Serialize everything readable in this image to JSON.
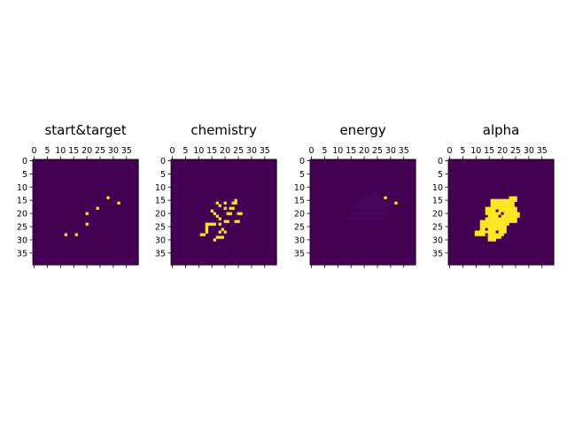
{
  "colors": {
    "background": "#440154",
    "foreground": "#fde725",
    "faint": "#46085c"
  },
  "chart_data": [
    {
      "type": "heatmap",
      "title": "start&target",
      "grid_size": 40,
      "xticks": [
        0,
        5,
        10,
        15,
        20,
        25,
        30,
        35
      ],
      "yticks": [
        0,
        5,
        10,
        15,
        20,
        25,
        30,
        35
      ],
      "xlim": [
        -0.5,
        39.5
      ],
      "ylim": [
        39.5,
        -0.5
      ],
      "colormap": "viridis",
      "value_range": [
        0,
        1
      ],
      "cells": [
        {
          "x": 28,
          "y": 14,
          "v": 1
        },
        {
          "x": 32,
          "y": 16,
          "v": 1
        },
        {
          "x": 24,
          "y": 18,
          "v": 1
        },
        {
          "x": 20,
          "y": 20,
          "v": 1
        },
        {
          "x": 20,
          "y": 24,
          "v": 1
        },
        {
          "x": 12,
          "y": 28,
          "v": 1
        },
        {
          "x": 16,
          "y": 28,
          "v": 1
        }
      ]
    },
    {
      "type": "heatmap",
      "title": "chemistry",
      "grid_size": 40,
      "xticks": [
        0,
        5,
        10,
        15,
        20,
        25,
        30,
        35
      ],
      "yticks": [
        0,
        5,
        10,
        15,
        20,
        25,
        30,
        35
      ],
      "xlim": [
        -0.5,
        39.5
      ],
      "ylim": [
        39.5,
        -0.5
      ],
      "colormap": "viridis",
      "value_range": [
        0,
        1
      ],
      "cells": [
        {
          "x": 24,
          "y": 15,
          "v": 1
        },
        {
          "x": 17,
          "y": 16,
          "v": 1
        },
        {
          "x": 20,
          "y": 16,
          "v": 1
        },
        {
          "x": 23,
          "y": 16,
          "v": 1
        },
        {
          "x": 24,
          "y": 16,
          "v": 1
        },
        {
          "x": 18,
          "y": 17,
          "v": 1
        },
        {
          "x": 20,
          "y": 18,
          "v": 1
        },
        {
          "x": 22,
          "y": 18,
          "v": 1
        },
        {
          "x": 23,
          "y": 18,
          "v": 1
        },
        {
          "x": 15,
          "y": 19,
          "v": 1
        },
        {
          "x": 16,
          "y": 20,
          "v": 1
        },
        {
          "x": 21,
          "y": 20,
          "v": 1
        },
        {
          "x": 22,
          "y": 20,
          "v": 1
        },
        {
          "x": 25,
          "y": 20,
          "v": 1
        },
        {
          "x": 26,
          "y": 20,
          "v": 1
        },
        {
          "x": 17,
          "y": 21,
          "v": 1
        },
        {
          "x": 18,
          "y": 22,
          "v": 1
        },
        {
          "x": 20,
          "y": 23,
          "v": 1
        },
        {
          "x": 21,
          "y": 23,
          "v": 1
        },
        {
          "x": 24,
          "y": 23,
          "v": 1
        },
        {
          "x": 25,
          "y": 23,
          "v": 1
        },
        {
          "x": 13,
          "y": 24,
          "v": 1
        },
        {
          "x": 14,
          "y": 24,
          "v": 1
        },
        {
          "x": 15,
          "y": 24,
          "v": 1
        },
        {
          "x": 16,
          "y": 24,
          "v": 1
        },
        {
          "x": 18,
          "y": 24,
          "v": 1
        },
        {
          "x": 13,
          "y": 25,
          "v": 1
        },
        {
          "x": 13,
          "y": 26,
          "v": 1
        },
        {
          "x": 19,
          "y": 26,
          "v": 1
        },
        {
          "x": 13,
          "y": 27,
          "v": 1
        },
        {
          "x": 18,
          "y": 27,
          "v": 1
        },
        {
          "x": 20,
          "y": 27,
          "v": 1
        },
        {
          "x": 11,
          "y": 28,
          "v": 1
        },
        {
          "x": 12,
          "y": 28,
          "v": 1
        },
        {
          "x": 17,
          "y": 29,
          "v": 1
        },
        {
          "x": 18,
          "y": 29,
          "v": 1
        },
        {
          "x": 19,
          "y": 29,
          "v": 1
        },
        {
          "x": 16,
          "y": 30,
          "v": 1
        }
      ]
    },
    {
      "type": "heatmap",
      "title": "energy",
      "grid_size": 40,
      "xticks": [
        0,
        5,
        10,
        15,
        20,
        25,
        30,
        35
      ],
      "yticks": [
        0,
        5,
        10,
        15,
        20,
        25,
        30,
        35
      ],
      "xlim": [
        -0.5,
        39.5
      ],
      "ylim": [
        39.5,
        -0.5
      ],
      "colormap": "viridis",
      "value_range": [
        0,
        1
      ],
      "faint_region_value": 0.03,
      "cells": [
        {
          "x": 28,
          "y": 14,
          "v": 1
        },
        {
          "x": 32,
          "y": 16,
          "v": 1
        }
      ]
    },
    {
      "type": "heatmap",
      "title": "alpha",
      "grid_size": 40,
      "xticks": [
        0,
        5,
        10,
        15,
        20,
        25,
        30,
        35
      ],
      "yticks": [
        0,
        5,
        10,
        15,
        20,
        25,
        30,
        35
      ],
      "xlim": [
        -0.5,
        39.5
      ],
      "ylim": [
        39.5,
        -0.5
      ],
      "colormap": "viridis",
      "value_range": [
        0,
        1
      ],
      "runs": [
        {
          "y": 14,
          "x0": 23,
          "x1": 25
        },
        {
          "y": 15,
          "x0": 16,
          "x1": 25
        },
        {
          "y": 16,
          "x0": 16,
          "x1": 24
        },
        {
          "y": 17,
          "x0": 16,
          "x1": 24
        },
        {
          "y": 18,
          "x0": 14,
          "x1": 25
        },
        {
          "y": 19,
          "x0": 14,
          "x1": 25
        },
        {
          "y": 20,
          "x0": 14,
          "x1": 26
        },
        {
          "y": 21,
          "x0": 15,
          "x1": 26
        },
        {
          "y": 22,
          "x0": 14,
          "x1": 25
        },
        {
          "y": 23,
          "x0": 12,
          "x1": 25
        },
        {
          "y": 24,
          "x0": 12,
          "x1": 22
        },
        {
          "y": 25,
          "x0": 12,
          "x1": 21
        },
        {
          "y": 26,
          "x0": 12,
          "x1": 21
        },
        {
          "y": 27,
          "x0": 10,
          "x1": 21
        },
        {
          "y": 28,
          "x0": 10,
          "x1": 20
        },
        {
          "y": 29,
          "x0": 15,
          "x1": 19
        },
        {
          "y": 30,
          "x0": 15,
          "x1": 17
        }
      ],
      "holes": [
        {
          "x": 18,
          "y": 19
        },
        {
          "x": 20,
          "y": 20
        },
        {
          "x": 19,
          "y": 21
        },
        {
          "x": 14,
          "y": 26
        },
        {
          "x": 18,
          "y": 27
        },
        {
          "x": 14,
          "y": 28
        }
      ]
    }
  ]
}
